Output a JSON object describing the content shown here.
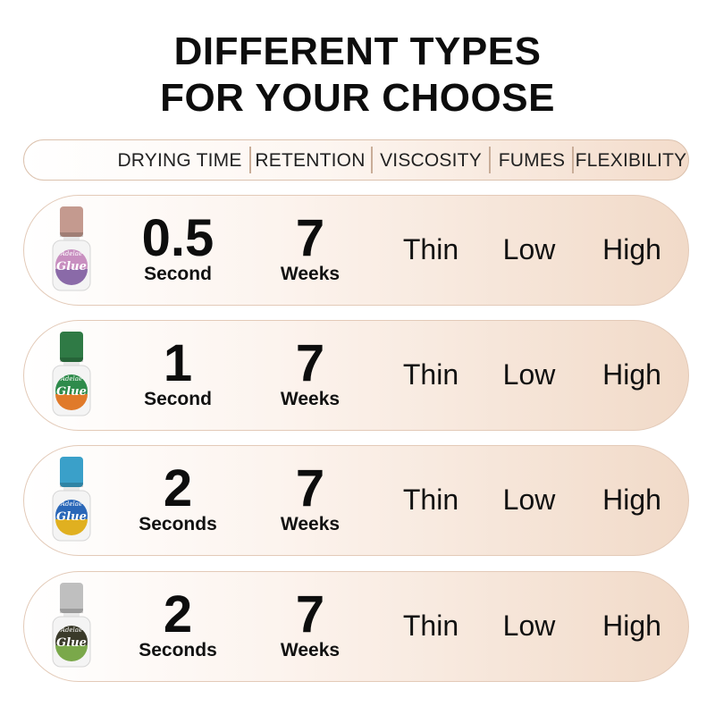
{
  "title": {
    "line1": "DIFFERENT TYPES",
    "line2": "FOR YOUR CHOOSE"
  },
  "header": [
    "DRYING TIME",
    "RETENTION",
    "VISCOSITY",
    "FUMES",
    "FLEXIBILITY"
  ],
  "products": [
    {
      "brand": "Adelae",
      "label": "Glue",
      "cap_color": "#c49a8f",
      "label_colors": [
        "#c88fc0",
        "#8a6aa8"
      ],
      "drying_value": "0.5",
      "drying_unit": "Second",
      "retention_value": "7",
      "retention_unit": "Weeks",
      "viscosity": "Thin",
      "fumes": "Low",
      "flexibility": "High"
    },
    {
      "brand": "Adelae",
      "label": "Glue",
      "cap_color": "#2f7a45",
      "label_colors": [
        "#2e8b4b",
        "#e07a2a"
      ],
      "drying_value": "1",
      "drying_unit": "Second",
      "retention_value": "7",
      "retention_unit": "Weeks",
      "viscosity": "Thin",
      "fumes": "Low",
      "flexibility": "High"
    },
    {
      "brand": "Adelae",
      "label": "Glue",
      "cap_color": "#3aa0c9",
      "label_colors": [
        "#2a67b8",
        "#e0b020"
      ],
      "drying_value": "2",
      "drying_unit": "Seconds",
      "retention_value": "7",
      "retention_unit": "Weeks",
      "viscosity": "Thin",
      "fumes": "Low",
      "flexibility": "High"
    },
    {
      "brand": "Adelae",
      "label": "Glue",
      "cap_color": "#bfbfbf",
      "label_colors": [
        "#3a3a2a",
        "#7aa84a"
      ],
      "drying_value": "2",
      "drying_unit": "Seconds",
      "retention_value": "7",
      "retention_unit": "Weeks",
      "viscosity": "Thin",
      "fumes": "Low",
      "flexibility": "High"
    }
  ]
}
